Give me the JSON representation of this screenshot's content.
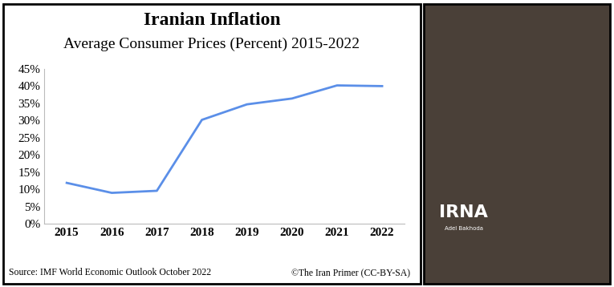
{
  "chart_data": {
    "type": "line",
    "title": "Iranian Inflation",
    "subtitle": "Average Consumer Prices (Percent) 2015-2022",
    "categories": [
      "2015",
      "2016",
      "2017",
      "2018",
      "2019",
      "2020",
      "2021",
      "2022"
    ],
    "values": [
      11.9,
      9.0,
      9.6,
      30.2,
      34.7,
      36.4,
      40.2,
      40.0
    ],
    "color": "#5b8fe8",
    "ylim": [
      0,
      45
    ],
    "yticks": [
      {
        "value": 0,
        "label": "0%"
      },
      {
        "value": 5,
        "label": "5%"
      },
      {
        "value": 10,
        "label": "10%"
      },
      {
        "value": 15,
        "label": "15%"
      },
      {
        "value": 20,
        "label": "20%"
      },
      {
        "value": 25,
        "label": "25%"
      },
      {
        "value": 30,
        "label": "30%"
      },
      {
        "value": 35,
        "label": "35%"
      },
      {
        "value": 40,
        "label": "40%"
      },
      {
        "value": 45,
        "label": "45%"
      }
    ],
    "grid": false,
    "annotations": [
      "Source: IMF World Economic Outlook October 2022",
      "©The Iran Primer (CC-BY-SA)"
    ]
  },
  "photo": {
    "watermark": "IRNA",
    "credit": "Adel Bakhoda"
  }
}
